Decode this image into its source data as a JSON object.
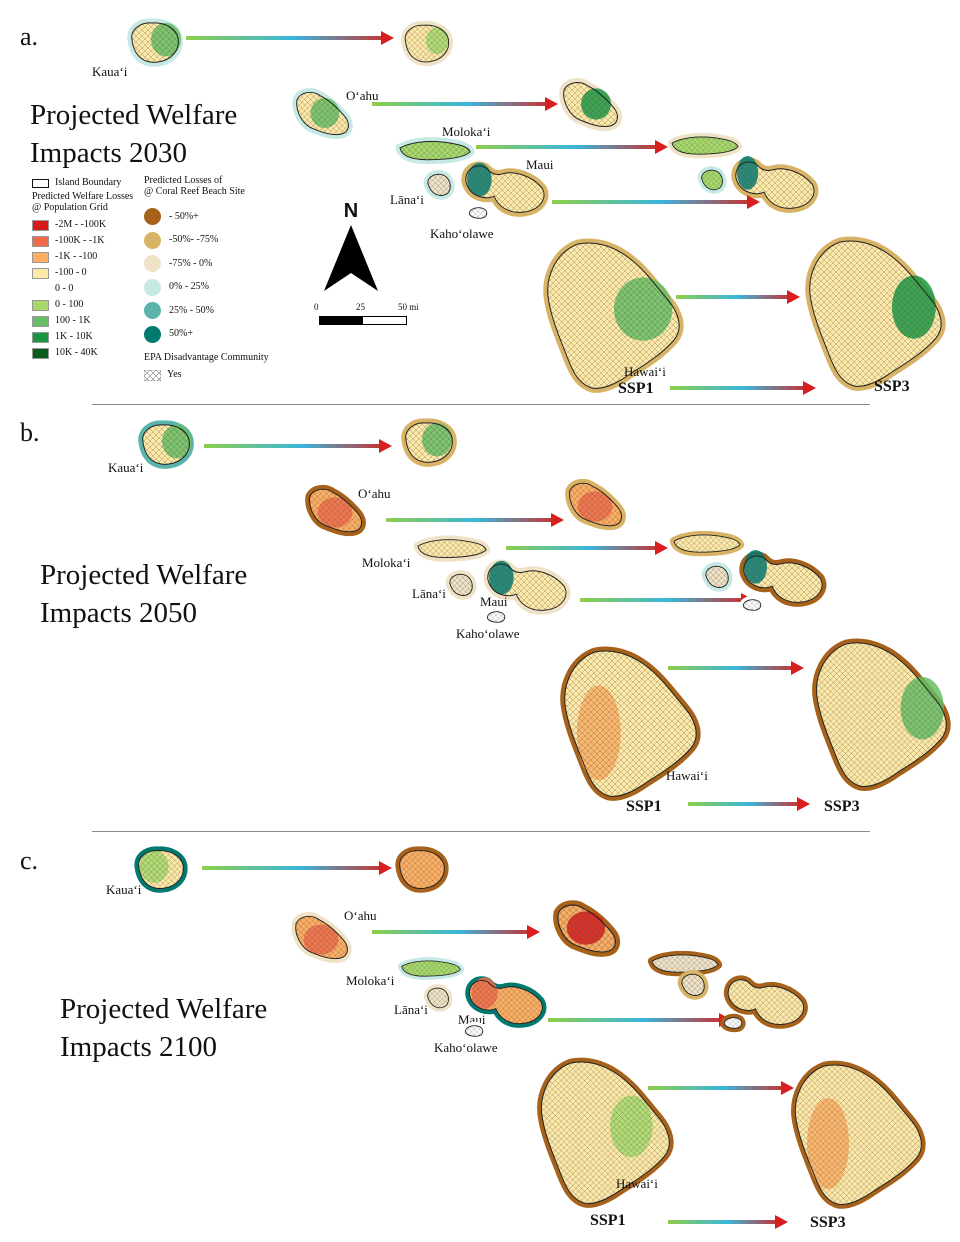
{
  "panels": [
    {
      "letter": "a.",
      "title": "Projected Welfare\nImpacts 2030"
    },
    {
      "letter": "b.",
      "title": "Projected Welfare\nImpacts 2050"
    },
    {
      "letter": "c.",
      "title": "Projected Welfare\nImpacts 2100"
    }
  ],
  "island_labels": {
    "kauai": "Kauaʻi",
    "oahu": "Oʻahu",
    "molokai": "Molokaʻi",
    "maui": "Maui",
    "lanai": "Lānaʻi",
    "kahoolawe": "Kahoʻolawe",
    "hawaii": "Hawaiʻi"
  },
  "scenario_labels": {
    "left": "SSP1",
    "right": "SSP3"
  },
  "legend": {
    "island_boundary": "Island Boundary",
    "welfare_title": "Predicted Welfare Losses\n@ Population Grid",
    "welfare_items": [
      {
        "label": "-2M - -100K",
        "color": "#d7191c"
      },
      {
        "label": "-100K - -1K",
        "color": "#ef6b4a"
      },
      {
        "label": "-1K - -100",
        "color": "#fdae61"
      },
      {
        "label": "-100 - 0",
        "color": "#fee8a6"
      },
      {
        "label": "0 - 0",
        "color": "#ffffff"
      },
      {
        "label": "0 - 100",
        "color": "#a6d96a"
      },
      {
        "label": "100 - 1K",
        "color": "#66bd63"
      },
      {
        "label": "1K - 10K",
        "color": "#1a9641"
      },
      {
        "label": "10K - 40K",
        "color": "#0b5d1e"
      }
    ],
    "reef_title": "Predicted Losses of\n@ Coral Reef Beach Site",
    "reef_items": [
      {
        "label": "- 50%+",
        "color": "#a6611a"
      },
      {
        "label": "-50%- -75%",
        "color": "#d8b365"
      },
      {
        "label": "-75% - 0%",
        "color": "#efe2c6"
      },
      {
        "label": "0% - 25%",
        "color": "#c7e9e6"
      },
      {
        "label": "25% - 50%",
        "color": "#5ab4ac"
      },
      {
        "label": "50%+",
        "color": "#01796f"
      }
    ],
    "epa_title": "EPA Disadvantage Community",
    "epa_item": "Yes"
  },
  "north_label": "N",
  "scalebar": {
    "labels": [
      "0",
      "25",
      "50 mi"
    ]
  }
}
